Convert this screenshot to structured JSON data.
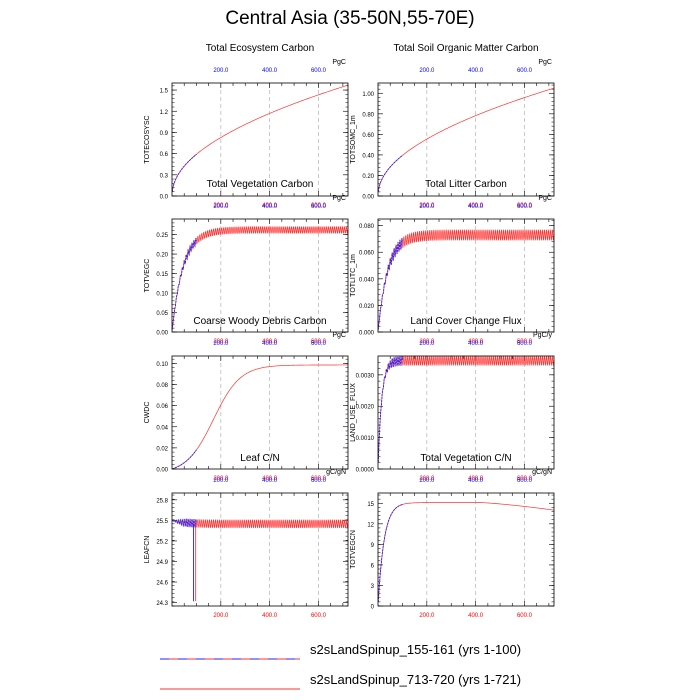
{
  "page": {
    "title": "Central Asia (35-50N,55-70E)"
  },
  "legend": [
    {
      "label": "s2sLandSpinup_155-161 (yrs 1-100)",
      "style": "dashed",
      "color": "#2222ff"
    },
    {
      "label": "s2sLandSpinup_713-720 (yrs 1-721)",
      "style": "solid",
      "color": "#ff3333"
    }
  ],
  "colors": {
    "blue_series": "#2222ff",
    "red_series": "#ff3333",
    "grid": "#bbbbbb",
    "top_ticks": "#0000ff",
    "bottom_ticks": "#ff0000"
  },
  "chart_data": [
    {
      "type": "line",
      "title": "Total Ecosystem Carbon",
      "ylabel": "TOTECOSYSC",
      "units": "PgC",
      "xlim": [
        0,
        721
      ],
      "ylim": [
        0,
        1.6
      ],
      "yticks": [
        "0.0",
        "0.3",
        "0.6",
        "0.9",
        "1.2",
        "1.5"
      ],
      "ytick_values": [
        0,
        0.3,
        0.6,
        0.9,
        1.2,
        1.5
      ],
      "xticks": [
        "200.0",
        "400.0",
        "600.0"
      ],
      "xtick_values": [
        200,
        400,
        600
      ],
      "grid": true,
      "pattern": "sqrt",
      "yfinal": 1.57,
      "osc": 0,
      "series": [
        {
          "name": "s2sLandSpinup_155-161 (yrs 1-100)",
          "x_range": [
            1,
            100
          ]
        },
        {
          "name": "s2sLandSpinup_713-720 (yrs 1-721)",
          "x_range": [
            1,
            721
          ]
        }
      ]
    },
    {
      "type": "line",
      "title": "Total Soil Organic Matter Carbon",
      "ylabel": "TOTSOMC_1m",
      "units": "PgC",
      "xlim": [
        0,
        721
      ],
      "ylim": [
        0,
        1.1
      ],
      "yticks": [
        "0.00",
        "0.20",
        "0.40",
        "0.60",
        "0.80",
        "1.00"
      ],
      "ytick_values": [
        0,
        0.2,
        0.4,
        0.6,
        0.8,
        1.0
      ],
      "xticks": [
        "200.0",
        "400.0",
        "600.0"
      ],
      "xtick_values": [
        200,
        400,
        600
      ],
      "grid": true,
      "pattern": "sqrt",
      "yfinal": 1.05,
      "osc": 0,
      "series": [
        {
          "name": "s2sLandSpinup_155-161 (yrs 1-100)",
          "x_range": [
            1,
            100
          ]
        },
        {
          "name": "s2sLandSpinup_713-720 (yrs 1-721)",
          "x_range": [
            1,
            721
          ]
        }
      ]
    },
    {
      "type": "line",
      "title": "Total Vegetation Carbon",
      "ylabel": "TOTVEGC",
      "units": "PgC",
      "xlim": [
        0,
        721
      ],
      "ylim": [
        0,
        0.29
      ],
      "yticks": [
        "0.00",
        "0.05",
        "0.10",
        "0.15",
        "0.20",
        "0.25"
      ],
      "ytick_values": [
        0,
        0.05,
        0.1,
        0.15,
        0.2,
        0.25
      ],
      "xticks": [
        "200.0",
        "400.0",
        "600.0"
      ],
      "xtick_values": [
        200,
        400,
        600
      ],
      "grid": true,
      "pattern": "sat",
      "yfinal": 0.262,
      "tau": 45,
      "osc": 0.009,
      "series": [
        {
          "name": "s2sLandSpinup_155-161 (yrs 1-100)",
          "x_range": [
            1,
            100
          ]
        },
        {
          "name": "s2sLandSpinup_713-720 (yrs 1-721)",
          "x_range": [
            1,
            721
          ]
        }
      ]
    },
    {
      "type": "line",
      "title": "Total Litter Carbon",
      "ylabel": "TOTLITC_1m",
      "units": "PgC",
      "xlim": [
        0,
        721
      ],
      "ylim": [
        0,
        0.085
      ],
      "yticks": [
        "0.000",
        "0.020",
        "0.040",
        "0.060",
        "0.080"
      ],
      "ytick_values": [
        0,
        0.02,
        0.04,
        0.06,
        0.08
      ],
      "xticks": [
        "200.0",
        "400.0",
        "600.0"
      ],
      "xtick_values": [
        200,
        400,
        600
      ],
      "grid": true,
      "pattern": "sat",
      "yfinal": 0.073,
      "tau": 40,
      "osc": 0.004,
      "series": [
        {
          "name": "s2sLandSpinup_155-161 (yrs 1-100)",
          "x_range": [
            1,
            100
          ]
        },
        {
          "name": "s2sLandSpinup_713-720 (yrs 1-721)",
          "x_range": [
            1,
            721
          ]
        }
      ]
    },
    {
      "type": "line",
      "title": "Coarse Woody Debris Carbon",
      "ylabel": "CWDC",
      "units": "PgC",
      "xlim": [
        0,
        721
      ],
      "ylim": [
        0,
        0.107
      ],
      "yticks": [
        "0.00",
        "0.02",
        "0.04",
        "0.06",
        "0.08",
        "0.10"
      ],
      "ytick_values": [
        0,
        0.02,
        0.04,
        0.06,
        0.08,
        0.1
      ],
      "xticks": [
        "200.0",
        "400.0",
        "600.0"
      ],
      "xtick_values": [
        200,
        400,
        600
      ],
      "grid": true,
      "pattern": "sig",
      "yfinal": 0.103,
      "osc": 0,
      "series": [
        {
          "name": "s2sLandSpinup_155-161 (yrs 1-100)",
          "x_range": [
            1,
            100
          ]
        },
        {
          "name": "s2sLandSpinup_713-720 (yrs 1-721)",
          "x_range": [
            1,
            721
          ]
        }
      ]
    },
    {
      "type": "line",
      "title": "Land Cover Change Flux",
      "ylabel": "LAND_USE_FLUX",
      "units": "PgC/y",
      "xlim": [
        0,
        721
      ],
      "ylim": [
        0,
        0.0036
      ],
      "yticks": [
        "0.0000",
        "0.0010",
        "0.0020",
        "0.0030"
      ],
      "ytick_values": [
        0,
        0.001,
        0.002,
        0.003
      ],
      "xticks": [
        "200.0",
        "400.0",
        "600.0"
      ],
      "xtick_values": [
        200,
        400,
        600
      ],
      "grid": true,
      "pattern": "flux",
      "yfinal": 0.00345,
      "osc": 0.00015,
      "series": [
        {
          "name": "s2sLandSpinup_155-161 (yrs 1-100)",
          "x_range": [
            1,
            100
          ]
        },
        {
          "name": "s2sLandSpinup_713-720 (yrs 1-721)",
          "x_range": [
            1,
            721
          ]
        }
      ]
    },
    {
      "type": "line",
      "title": "Leaf C/N",
      "ylabel": "LEAFCN",
      "units": "gC/gN",
      "xlim": [
        0,
        721
      ],
      "ylim": [
        24.25,
        25.9
      ],
      "yticks": [
        "24.3",
        "24.6",
        "24.9",
        "25.2",
        "25.5",
        "25.8"
      ],
      "ytick_values": [
        24.3,
        24.6,
        24.9,
        25.2,
        25.5,
        25.8
      ],
      "xticks": [
        "200.0",
        "400.0",
        "600.0"
      ],
      "xtick_values": [
        200,
        400,
        600
      ],
      "grid": true,
      "pattern": "leafcn",
      "yfinal": 25.45,
      "osc": 0.06,
      "series": [
        {
          "name": "s2sLandSpinup_155-161 (yrs 1-100)",
          "x_range": [
            1,
            100
          ]
        },
        {
          "name": "s2sLandSpinup_713-720 (yrs 1-721)",
          "x_range": [
            1,
            721
          ]
        }
      ]
    },
    {
      "type": "line",
      "title": "Total Vegetation C/N",
      "ylabel": "TOTVEGCN",
      "units": "gC/gN",
      "xlim": [
        0,
        721
      ],
      "ylim": [
        0,
        16.5
      ],
      "yticks": [
        "0",
        "3",
        "6",
        "9",
        "12",
        "15"
      ],
      "ytick_values": [
        0,
        3,
        6,
        9,
        12,
        15
      ],
      "xticks": [
        "200.0",
        "400.0",
        "600.0"
      ],
      "xtick_values": [
        200,
        400,
        600
      ],
      "grid": true,
      "pattern": "vegcn",
      "yfinal": 14.0,
      "osc": 0,
      "series": [
        {
          "name": "s2sLandSpinup_155-161 (yrs 1-100)",
          "x_range": [
            1,
            100
          ]
        },
        {
          "name": "s2sLandSpinup_713-720 (yrs 1-721)",
          "x_range": [
            1,
            721
          ]
        }
      ]
    }
  ]
}
